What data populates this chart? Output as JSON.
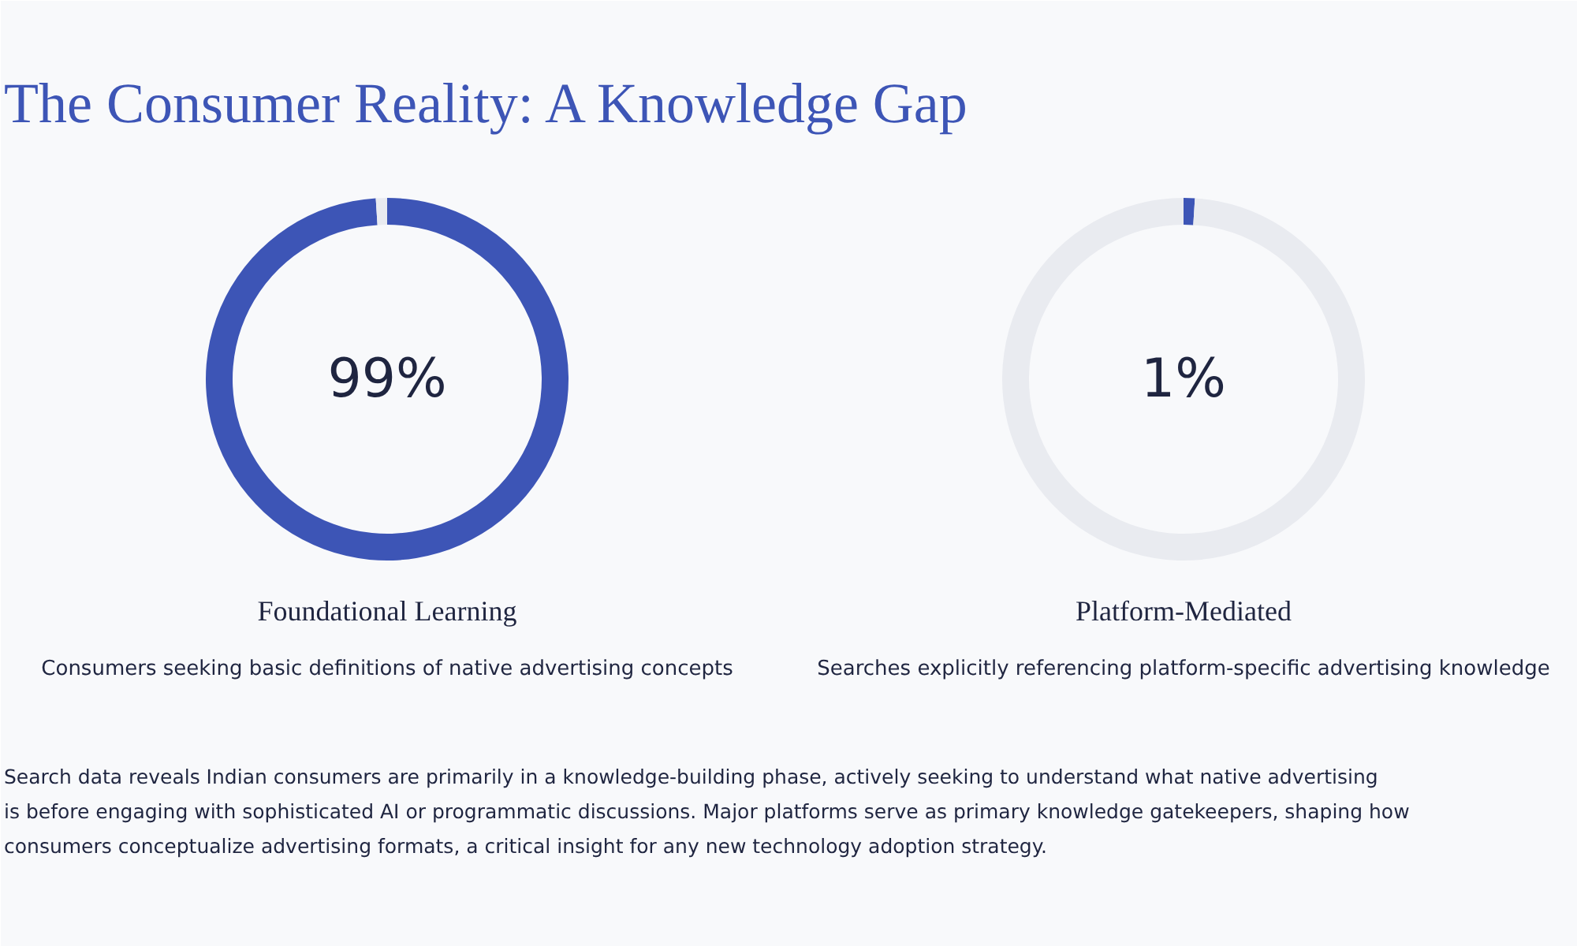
{
  "chart_data": [
    {
      "type": "donut",
      "title": "The Consumer Reality: A Knowledge Gap",
      "categories": [
        null,
        null
      ],
      "values": [
        99,
        1
      ],
      "colors": [
        "#3d55b6",
        "#e9ebf0"
      ],
      "xlabel": "Foundational Learning",
      "annotations": [
        "99%",
        "Consumers seeking basic definitions of native advertising concepts"
      ]
    },
    {
      "type": "donut",
      "categories": [
        null,
        null
      ],
      "values": [
        1,
        99
      ],
      "colors": [
        "#3d55b6",
        "#e9ebf0"
      ],
      "xlabel": "Platform-Mediated",
      "annotations": [
        "1%",
        "Searches explicitly referencing platform-specific advertising knowledge",
        "Search data reveals Indian consumers are primarily in a knowledge-building phase, actively seeking to understand what native advertising is before engaging with sophisticated AI or programmatic discussions. Major platforms serve as primary knowledge gatekeepers, shaping how consumers conceptualize advertising formats, a critical insight for any new technology adoption strategy."
      ]
    }
  ]
}
